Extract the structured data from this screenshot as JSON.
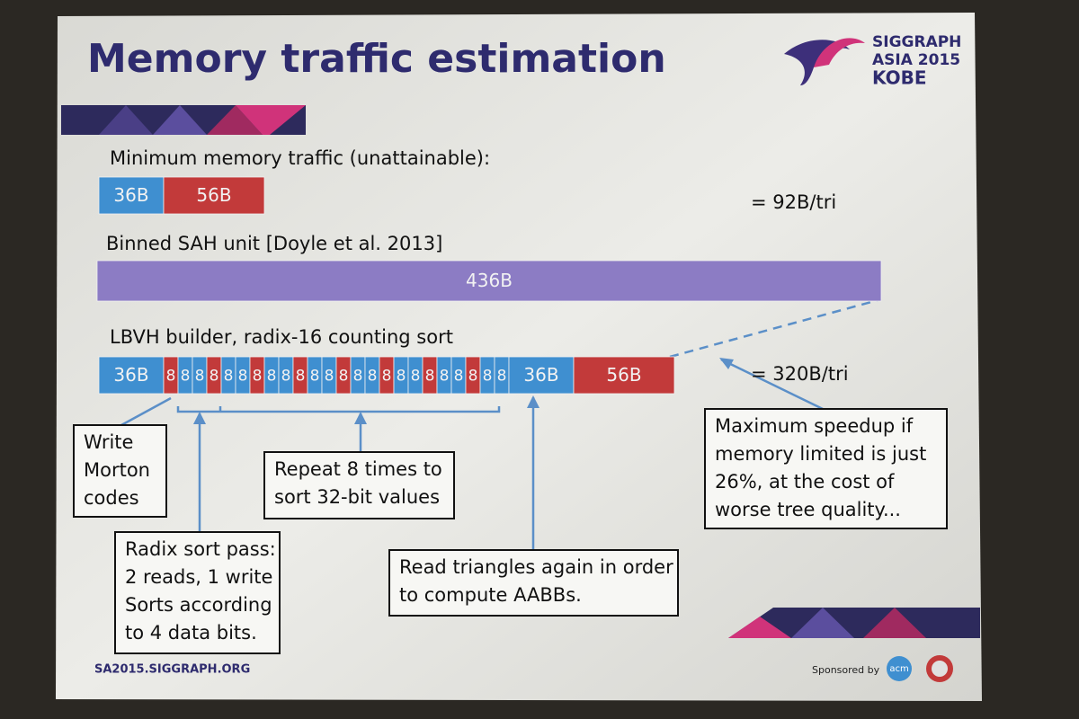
{
  "header": {
    "title": "Memory traffic estimation",
    "logo": [
      "SIGGRAPH",
      "ASIA 2015",
      "KOBE"
    ]
  },
  "rows": [
    {
      "label": "Minimum memory traffic (unattainable):",
      "segments": [
        {
          "label": "36B",
          "color": "#3f8fd0"
        },
        {
          "label": "56B",
          "color": "#c23a3a"
        }
      ],
      "total": "= 92B/tri"
    },
    {
      "label": "Binned SAH unit [Doyle et al. 2013]",
      "segments": [
        {
          "label": "436B",
          "color": "#8c7cc4"
        }
      ]
    },
    {
      "label": "LBVH builder, radix-16 counting sort",
      "segments": [
        {
          "label": "36B",
          "color": "#3f8fd0"
        },
        {
          "label": "8",
          "color": "#c23a3a"
        },
        {
          "label": "8",
          "color": "#3f8fd0"
        },
        {
          "label": "8",
          "color": "#3f8fd0"
        },
        {
          "label": "8",
          "color": "#c23a3a"
        },
        {
          "label": "8",
          "color": "#3f8fd0"
        },
        {
          "label": "8",
          "color": "#3f8fd0"
        },
        {
          "label": "8",
          "color": "#c23a3a"
        },
        {
          "label": "8",
          "color": "#3f8fd0"
        },
        {
          "label": "8",
          "color": "#3f8fd0"
        },
        {
          "label": "8",
          "color": "#c23a3a"
        },
        {
          "label": "8",
          "color": "#3f8fd0"
        },
        {
          "label": "8",
          "color": "#3f8fd0"
        },
        {
          "label": "8",
          "color": "#c23a3a"
        },
        {
          "label": "8",
          "color": "#3f8fd0"
        },
        {
          "label": "8",
          "color": "#3f8fd0"
        },
        {
          "label": "8",
          "color": "#c23a3a"
        },
        {
          "label": "8",
          "color": "#3f8fd0"
        },
        {
          "label": "8",
          "color": "#3f8fd0"
        },
        {
          "label": "8",
          "color": "#c23a3a"
        },
        {
          "label": "8",
          "color": "#3f8fd0"
        },
        {
          "label": "8",
          "color": "#3f8fd0"
        },
        {
          "label": "8",
          "color": "#c23a3a"
        },
        {
          "label": "8",
          "color": "#3f8fd0"
        },
        {
          "label": "8",
          "color": "#3f8fd0"
        },
        {
          "label": "36B",
          "color": "#3f8fd0"
        },
        {
          "label": "56B",
          "color": "#c23a3a"
        }
      ],
      "total": "= 320B/tri"
    }
  ],
  "callouts": [
    {
      "lines": [
        "Write",
        "Morton",
        "codes"
      ]
    },
    {
      "lines": [
        "Repeat 8 times to",
        "sort 32-bit values"
      ]
    },
    {
      "lines": [
        "Radix sort pass:",
        "2 reads, 1 write",
        "Sorts according",
        "to 4 data bits."
      ]
    },
    {
      "lines": [
        "Read triangles again in order",
        "to compute AABBs."
      ]
    },
    {
      "lines": [
        "Maximum speedup if",
        "memory limited is just",
        "26%, at the cost of",
        "worse tree quality..."
      ]
    }
  ],
  "footer": {
    "url": "SA2015.SIGGRAPH.ORG",
    "sponsor": "Sponsored by",
    "acm": "acm"
  }
}
